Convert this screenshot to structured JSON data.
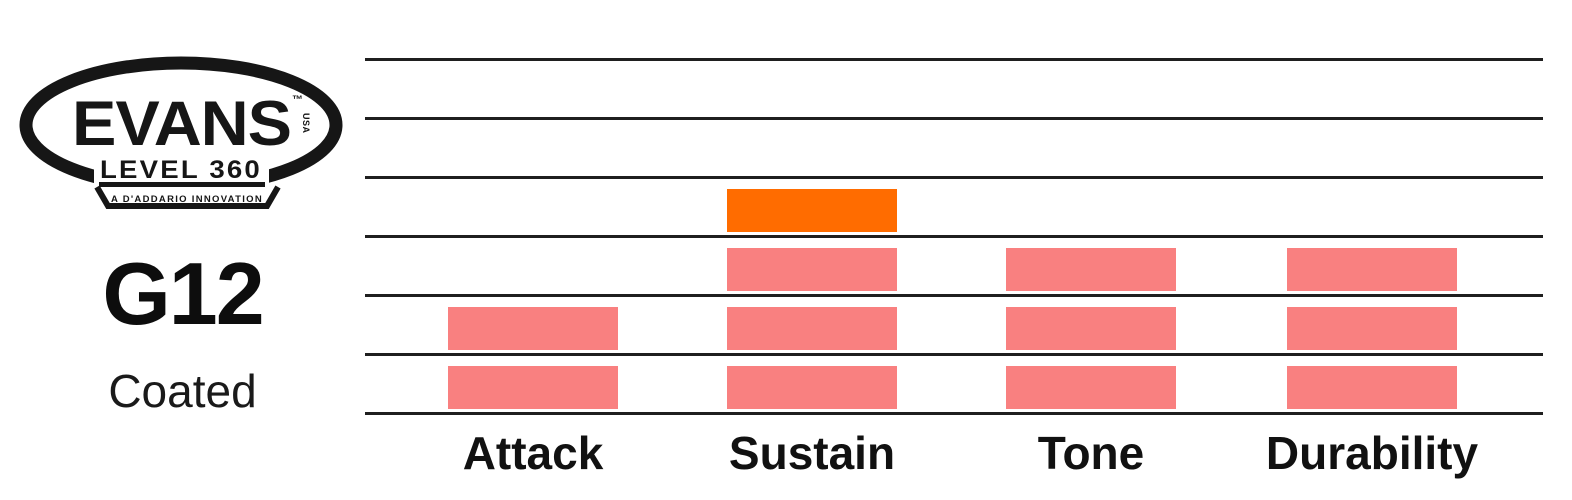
{
  "brand": {
    "logo": {
      "wordmark": "EVANS",
      "trademark": "™",
      "usa_mark": "USA",
      "series": "LEVEL 360",
      "tagline": "A D'ADDARIO INNOVATION"
    },
    "product_code": "G12",
    "product_finish": "Coated"
  },
  "chart_data": {
    "type": "bar",
    "subtype": "segmented-rating",
    "title": "",
    "xlabel": "",
    "ylabel": "",
    "categories": [
      "Attack",
      "Sustain",
      "Tone",
      "Durability"
    ],
    "values": [
      2,
      4,
      3,
      3
    ],
    "ylim": [
      0,
      6
    ],
    "grid": {
      "on": true,
      "lines": 7,
      "color": "#1F1F1F"
    },
    "legend": "none",
    "bar_color": "#F98080",
    "highlight_color": "#FF6C00",
    "highlighted": [
      {
        "category": "Sustain",
        "segment": 4
      }
    ]
  }
}
